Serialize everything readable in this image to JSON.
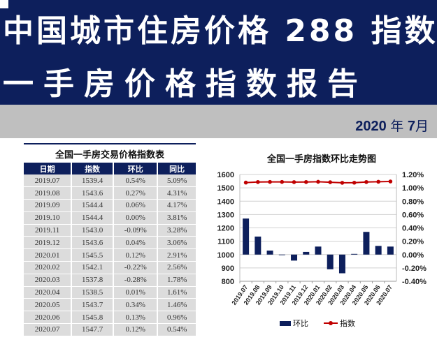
{
  "header": {
    "title_line1": "中国城市住房价格 288 指数",
    "title_line2": "一手房价格指数报告",
    "date_year": "2020",
    "date_year_char": "年",
    "date_month": "7",
    "date_month_char": "月"
  },
  "table": {
    "title": "全国一手房交易价格指数表",
    "columns": [
      "日期",
      "指数",
      "环比",
      "同比"
    ],
    "rows": [
      [
        "2019.07",
        "1539.4",
        "0.54%",
        "5.09%"
      ],
      [
        "2019.08",
        "1543.6",
        "0.27%",
        "4.31%"
      ],
      [
        "2019.09",
        "1544.4",
        "0.06%",
        "4.17%"
      ],
      [
        "2019.10",
        "1544.4",
        "0.00%",
        "3.81%"
      ],
      [
        "2019.11",
        "1543.0",
        "-0.09%",
        "3.28%"
      ],
      [
        "2019.12",
        "1543.6",
        "0.04%",
        "3.06%"
      ],
      [
        "2020.01",
        "1545.5",
        "0.12%",
        "2.91%"
      ],
      [
        "2020.02",
        "1542.1",
        "-0.22%",
        "2.56%"
      ],
      [
        "2020.03",
        "1537.8",
        "-0.28%",
        "1.78%"
      ],
      [
        "2020.04",
        "1538.5",
        "0.01%",
        "1.61%"
      ],
      [
        "2020.05",
        "1543.7",
        "0.34%",
        "1.46%"
      ],
      [
        "2020.06",
        "1545.8",
        "0.13%",
        "0.96%"
      ],
      [
        "2020.07",
        "1547.7",
        "0.12%",
        "0.54%"
      ]
    ]
  },
  "chart_data": {
    "type": "bar+line",
    "title": "全国一手房指数环比走势图",
    "categories": [
      "2019.07",
      "2019.08",
      "2019.09",
      "2019.10",
      "2019.11",
      "2019.12",
      "2020.01",
      "2020.02",
      "2020.03",
      "2020.04",
      "2020.05",
      "2020.06",
      "2020.07"
    ],
    "series": [
      {
        "name": "环比",
        "type": "bar",
        "axis": "right",
        "color": "#0d1f5c",
        "values": [
          0.54,
          0.27,
          0.06,
          0.0,
          -0.09,
          0.04,
          0.12,
          -0.22,
          -0.28,
          0.01,
          0.34,
          0.13,
          0.12
        ]
      },
      {
        "name": "指数",
        "type": "line",
        "axis": "left",
        "color": "#c00000",
        "values": [
          1539.4,
          1543.6,
          1544.4,
          1544.4,
          1543.0,
          1543.6,
          1545.5,
          1542.1,
          1537.8,
          1538.5,
          1543.7,
          1545.8,
          1547.7
        ]
      }
    ],
    "yleft": {
      "ticks": [
        "1600",
        "1500",
        "1400",
        "1300",
        "1200",
        "1100",
        "1000",
        "900",
        "800"
      ],
      "ylim": [
        800,
        1600
      ]
    },
    "yright": {
      "ticks": [
        "1.20%",
        "1.00%",
        "0.80%",
        "0.60%",
        "0.40%",
        "0.20%",
        "0.00%",
        "-0.20%",
        "-0.40%"
      ],
      "ylim": [
        -0.4,
        1.2
      ]
    },
    "legend": [
      "环比",
      "指数"
    ],
    "legend_position": "bottom",
    "grid": true
  }
}
